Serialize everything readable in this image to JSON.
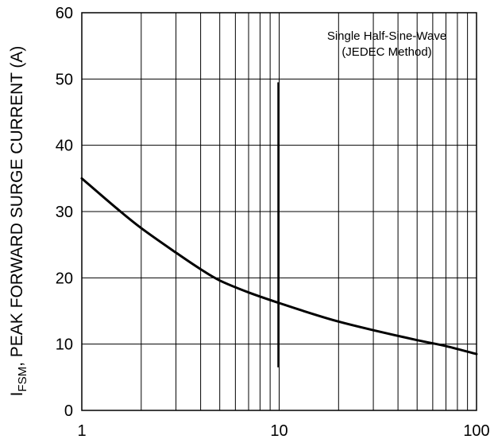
{
  "chart_data": {
    "type": "line",
    "title": "",
    "xlabel": "",
    "ylabel": {
      "prefix": "I",
      "subscript": "FSM",
      "text": ", PEAK FORWARD SURGE CURRENT (A)"
    },
    "x_scale": "log",
    "xlim": [
      1,
      100
    ],
    "ylim": [
      0,
      60
    ],
    "x_ticks": [
      {
        "value": 1,
        "label": "1"
      },
      {
        "value": 10,
        "label": "10"
      },
      {
        "value": 100,
        "label": "100"
      }
    ],
    "y_ticks": [
      {
        "value": 0,
        "label": "0"
      },
      {
        "value": 10,
        "label": "10"
      },
      {
        "value": 20,
        "label": "20"
      },
      {
        "value": 30,
        "label": "30"
      },
      {
        "value": 40,
        "label": "40"
      },
      {
        "value": 50,
        "label": "50"
      },
      {
        "value": 60,
        "label": "60"
      }
    ],
    "grid": true,
    "series": [
      {
        "x": [
          1,
          1.5,
          2,
          3,
          4,
          5,
          7,
          10,
          15,
          20,
          30,
          50,
          70,
          100
        ],
        "y": [
          35,
          30.5,
          27.5,
          23.8,
          21.3,
          19.6,
          17.8,
          16.2,
          14.5,
          13.4,
          12.1,
          10.6,
          9.7,
          8.5
        ]
      }
    ],
    "marker_line": {
      "x": 10,
      "y_from": 6.5,
      "y_to": 49.5
    },
    "annotation": [
      "Single Half-Sine-Wave",
      "(JEDEC Method)"
    ]
  }
}
